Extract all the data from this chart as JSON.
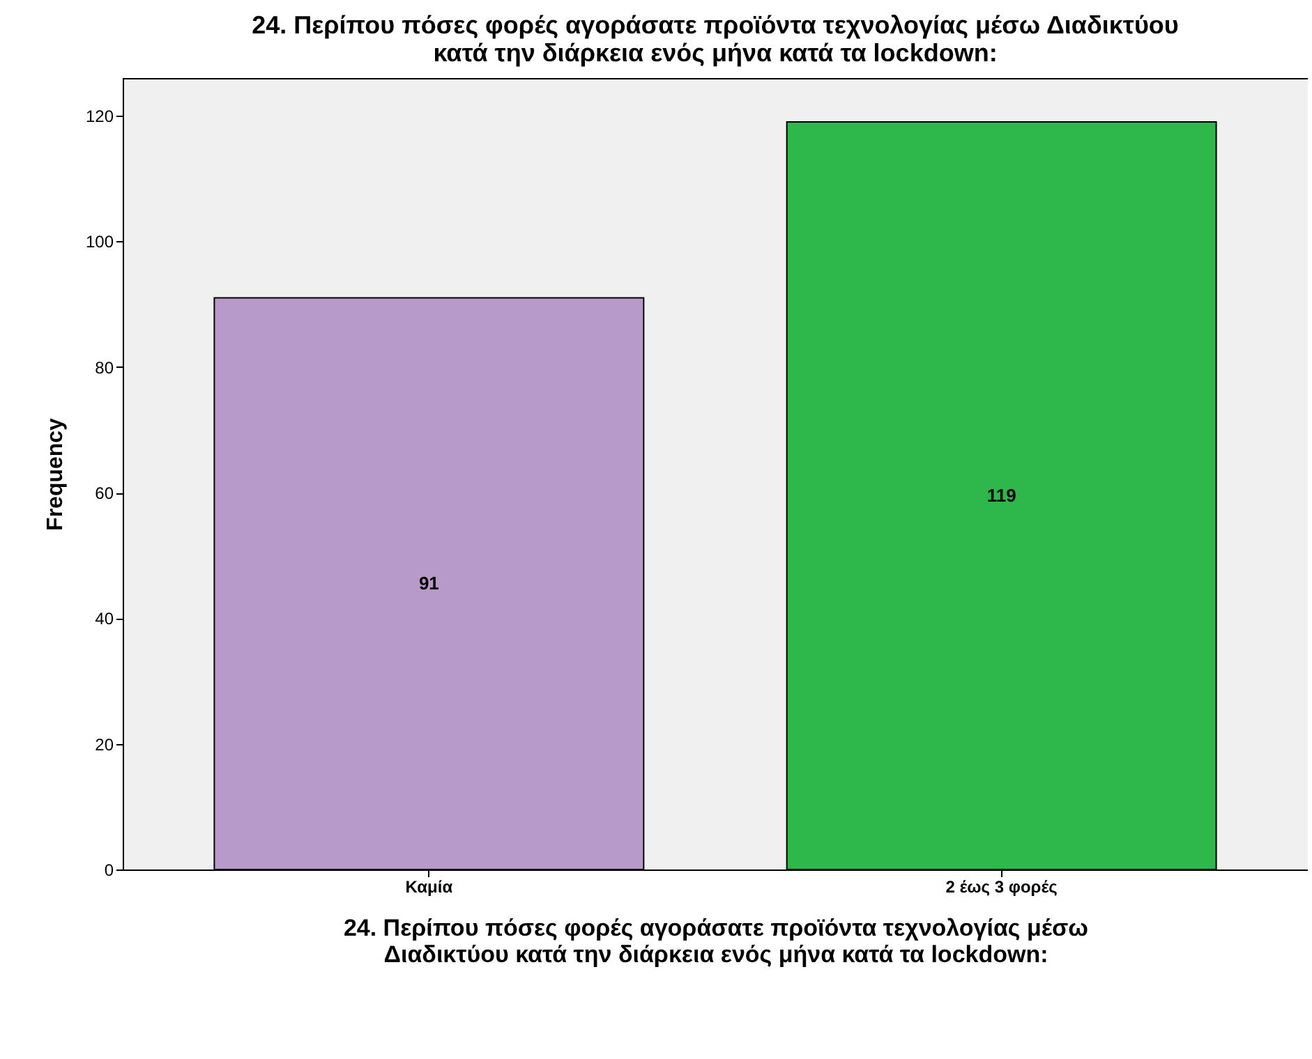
{
  "chart_data": {
    "type": "bar",
    "title": "24. Περίπου πόσες φορές αγοράσατε προϊόντα τεχνολογίας μέσω Διαδικτύου κατά την διάρκεια ενός μήνα κατά τα lockdown:",
    "xlabel": "24. Περίπου πόσες φορές αγοράσατε προϊόντα τεχνολογίας μέσω Διαδικτύου κατά την διάρκεια ενός μήνα κατά τα lockdown:",
    "ylabel": "Frequency",
    "categories": [
      "Καμία",
      "2 έως 3 φορές"
    ],
    "values": [
      91,
      119
    ],
    "colors": [
      "#b89aca",
      "#2eb84a"
    ],
    "ylim": [
      0,
      126
    ],
    "yticks": [
      0,
      20,
      40,
      60,
      80,
      100,
      120
    ],
    "grid": false,
    "data_labels": true
  }
}
